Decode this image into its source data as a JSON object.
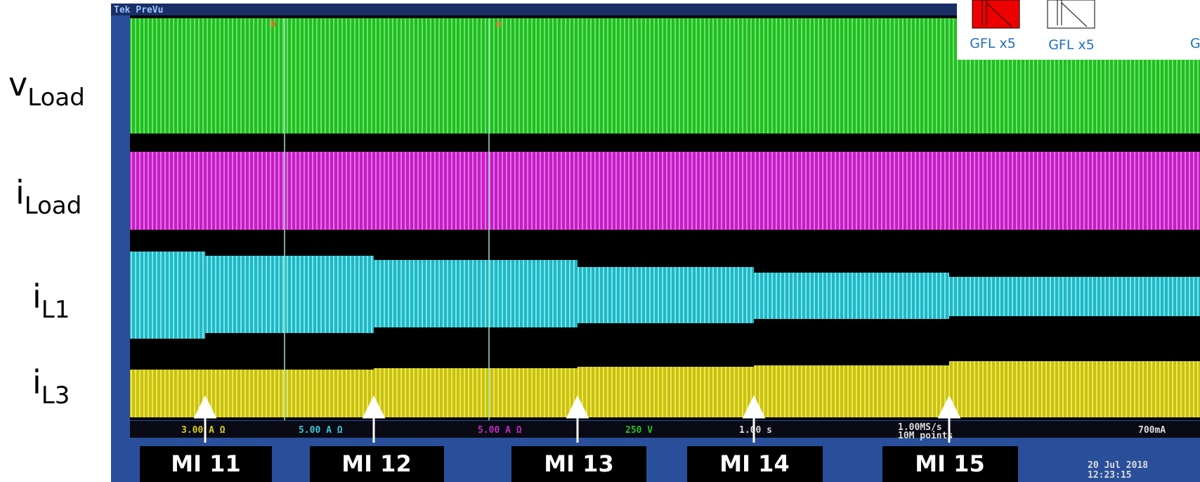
{
  "signal_labels": [
    {
      "main": "v",
      "sub": "Load"
    },
    {
      "main": "i",
      "sub": "Load"
    },
    {
      "main": "i",
      "sub": "L1"
    },
    {
      "main": "i",
      "sub": "L3"
    }
  ],
  "scope": {
    "header": "Tek PreVu",
    "cursors": [
      "b",
      "a"
    ],
    "channel_readouts": [
      "3.00 A Ω",
      "5.00 A Ω",
      "5.00 A Ω",
      "250 V"
    ],
    "timebase": "1.00 s",
    "sample_rate": "1.00MS/s",
    "record_length": "10M points",
    "trigger_level": "700mA",
    "date": "20 Jul 2018",
    "time": "12:23:15"
  },
  "steps": [
    "MI 11",
    "MI 12",
    "MI 13",
    "MI 14",
    "MI 15"
  ],
  "legend": [
    "GFL x5",
    "GFL x5",
    "G"
  ]
}
